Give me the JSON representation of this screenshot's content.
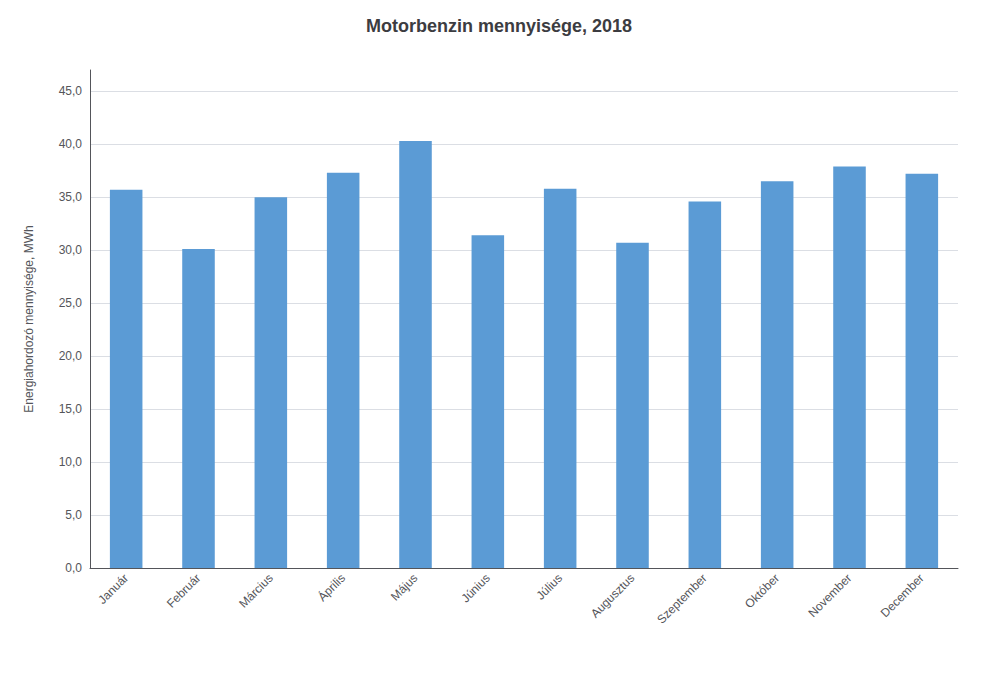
{
  "chart_data": {
    "type": "bar",
    "title": "Motorbenzin mennyisége, 2018",
    "categories": [
      "Január",
      "Február",
      "Március",
      "Április",
      "Május",
      "Június",
      "Július",
      "Augusztus",
      "Szeptember",
      "Október",
      "November",
      "December"
    ],
    "values": [
      35.7,
      30.1,
      35.0,
      37.3,
      40.3,
      31.4,
      35.8,
      30.7,
      34.6,
      36.5,
      37.9,
      37.2
    ],
    "color": "#5B9BD5",
    "ylabel": "Energiahordozó mennyisége, MWh",
    "ylim": [
      0,
      47
    ],
    "yticks": [
      {
        "value": 0.0,
        "label": "0,0"
      },
      {
        "value": 5.0,
        "label": "5,0"
      },
      {
        "value": 10.0,
        "label": "10,0"
      },
      {
        "value": 15.0,
        "label": "15,0"
      },
      {
        "value": 20.0,
        "label": "20,0"
      },
      {
        "value": 25.0,
        "label": "25,0"
      },
      {
        "value": 30.0,
        "label": "30,0"
      },
      {
        "value": 35.0,
        "label": "35,0"
      },
      {
        "value": 40.0,
        "label": "40,0"
      },
      {
        "value": 45.0,
        "label": "45,0"
      }
    ],
    "grid": true
  }
}
